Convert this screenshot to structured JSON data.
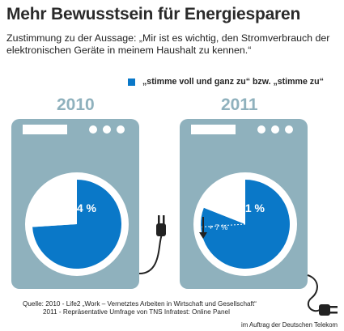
{
  "title": "Mehr Bewusstsein für Energiesparen",
  "subtitle": "Zustimmung zu der Aussage: „Mir ist es wichtig, den Stromverbrauch der elektronischen Geräte in meinem Haushalt zu kennen.“",
  "legend": {
    "label": "„stimme voll und ganz zu“ bzw. „stimme zu“",
    "color": "#0a78c8"
  },
  "chart_data": {
    "type": "pie",
    "title": "Mehr Bewusstsein für Energiesparen",
    "series_name": "„stimme voll und ganz zu“ bzw. „stimme zu“",
    "categories": [
      "2010",
      "2011"
    ],
    "values": [
      74,
      81
    ],
    "value_labels": [
      "74 %",
      "81 %"
    ],
    "annotation": "+ 7 %",
    "colors": {
      "agree": "#0a78c8",
      "rest": "#ffffff",
      "machine": "#8fb1bd"
    }
  },
  "source": {
    "line1": "Quelle: 2010 - Life2 „Work – Vernetztes Arbeiten in Wirtschaft und Gesellschaft“",
    "line2": "2011 - Repräsentative Umfrage von TNS Infratest: Online Panel"
  },
  "credit": "im Auftrag der Deutschen Telekom"
}
